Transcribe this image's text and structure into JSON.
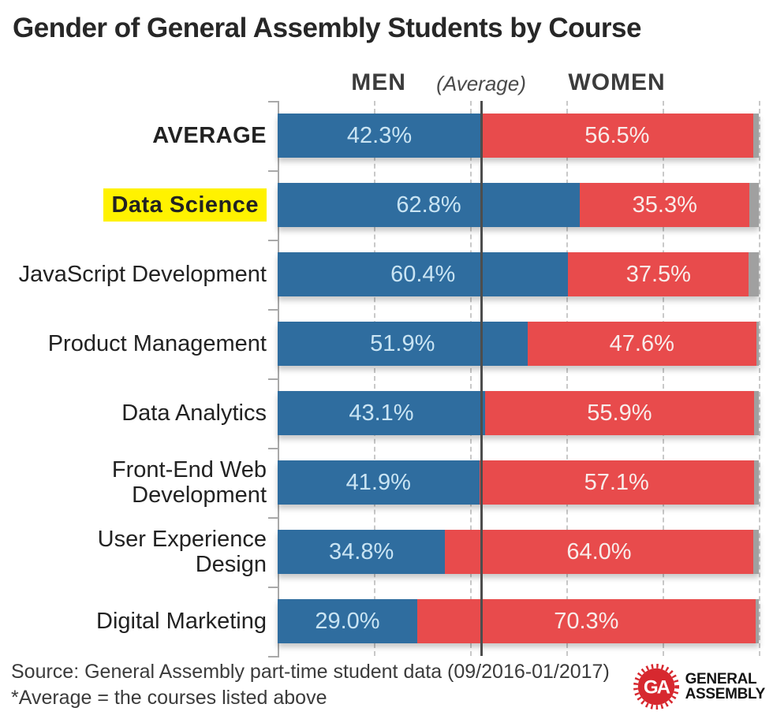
{
  "title": "Gender of General Assembly Students by Course",
  "column_headers": {
    "men": "MEN",
    "average": "(Average)",
    "women": "WOMEN"
  },
  "chart_data": {
    "type": "bar",
    "orientation": "horizontal",
    "stacked": true,
    "title": "Gender of General Assembly Students by Course",
    "xlabel": "",
    "ylabel": "",
    "xlim": [
      0,
      100
    ],
    "grid": "dashed-vertical",
    "gridlines_pct": [
      20,
      40,
      60,
      80,
      100
    ],
    "average_line_pct": 42.3,
    "colors": {
      "men": "#2f6d9f",
      "women": "#e84b4c",
      "other": "#a0a0a0",
      "highlight": "#fff200"
    },
    "series": [
      {
        "name": "MEN",
        "values": [
          42.3,
          62.8,
          60.4,
          51.9,
          43.1,
          41.9,
          34.8,
          29.0
        ]
      },
      {
        "name": "WOMEN",
        "values": [
          56.5,
          35.3,
          37.5,
          47.6,
          55.9,
          57.1,
          64.0,
          70.3
        ]
      }
    ],
    "categories": [
      "AVERAGE",
      "Data Science",
      "JavaScript Development",
      "Product Management",
      "Data Analytics",
      "Front-End Web Development",
      "User Experience Design",
      "Digital Marketing"
    ],
    "rows": [
      {
        "label": "AVERAGE",
        "lines": [
          "AVERAGE"
        ],
        "bold": true,
        "highlight": false,
        "men": 42.3,
        "women": 56.5,
        "men_label": "42.3%",
        "women_label": "56.5%"
      },
      {
        "label": "Data Science",
        "lines": [
          "Data Science"
        ],
        "bold": true,
        "highlight": true,
        "men": 62.8,
        "women": 35.3,
        "men_label": "62.8%",
        "women_label": "35.3%"
      },
      {
        "label": "JavaScript Development",
        "lines": [
          "JavaScript Development"
        ],
        "bold": false,
        "highlight": false,
        "men": 60.4,
        "women": 37.5,
        "men_label": "60.4%",
        "women_label": "37.5%"
      },
      {
        "label": "Product Management",
        "lines": [
          "Product Management"
        ],
        "bold": false,
        "highlight": false,
        "men": 51.9,
        "women": 47.6,
        "men_label": "51.9%",
        "women_label": "47.6%"
      },
      {
        "label": "Data Analytics",
        "lines": [
          "Data Analytics"
        ],
        "bold": false,
        "highlight": false,
        "men": 43.1,
        "women": 55.9,
        "men_label": "43.1%",
        "women_label": "55.9%"
      },
      {
        "label": "Front-End Web Development",
        "lines": [
          "Front-End Web",
          "Development"
        ],
        "bold": false,
        "highlight": false,
        "men": 41.9,
        "women": 57.1,
        "men_label": "41.9%",
        "women_label": "57.1%"
      },
      {
        "label": "User Experience Design",
        "lines": [
          "User Experience",
          "Design"
        ],
        "bold": false,
        "highlight": false,
        "men": 34.8,
        "women": 64.0,
        "men_label": "34.8%",
        "women_label": "64.0%"
      },
      {
        "label": "Digital Marketing",
        "lines": [
          "Digital Marketing"
        ],
        "bold": false,
        "highlight": false,
        "men": 29.0,
        "women": 70.3,
        "men_label": "29.0%",
        "women_label": "70.3%"
      }
    ]
  },
  "footer": {
    "source": "Source: General Assembly part-time student data (09/2016-01/2017)",
    "note": "*Average = the courses listed above"
  },
  "logo": {
    "badge": "GA",
    "line1": "GENERAL",
    "line2": "ASSEMBLY"
  }
}
